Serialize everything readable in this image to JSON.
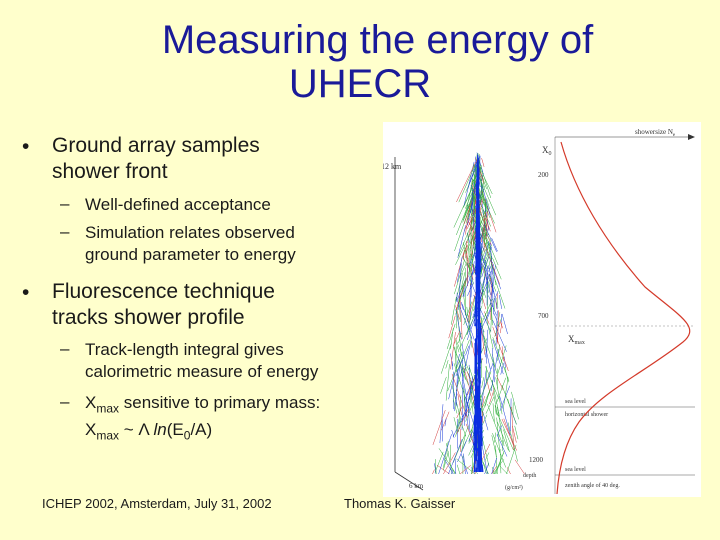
{
  "slide": {
    "title_line1": "Measuring the energy of",
    "title_line2": "UHECR",
    "bullet1": {
      "line1": "Ground array samples",
      "line2": "shower front"
    },
    "bullet1_subs": [
      {
        "line1": "Well-defined acceptance",
        "line2": ""
      },
      {
        "line1": "Simulation relates observed",
        "line2": "ground parameter to energy"
      }
    ],
    "bullet2": {
      "line1": "Fluorescence technique",
      "line2": "tracks shower profile"
    },
    "bullet2_subs": [
      {
        "line1": "Track-length integral gives",
        "line2": "calorimetric measure of energy"
      },
      {
        "xmax_a": "X",
        "xmax_sub": "max",
        "text_a": " sensitive to primary mass:",
        "xmax_b": "X",
        "xmax_sub_b": "max",
        "text_b": " ~ Λ ",
        "ln": "ln",
        "paren": "(E",
        "e_sub": "0",
        "tail": "/A)"
      }
    ],
    "bullet_symbol": "•",
    "sub_symbol": "–",
    "footer_left": "ICHEP 2002, Amsterdam, July 31, 2002",
    "footer_right": "Thomas K. Gaisser"
  },
  "figure": {
    "label_12km": "12 km",
    "label_6km": "6 km",
    "label_x0": "X",
    "label_x0_sub": "0",
    "label_xmax": "X",
    "label_xmax_sub": "max",
    "label_showersize": "showersize N",
    "label_showersize_sub": "e",
    "depth_200": "200",
    "depth_700": "700",
    "depth_1200": "1200",
    "depth_label": "depth",
    "depth_unit": "(g/cm²)",
    "sea_level_1": "sea level",
    "horizontal_shower": "horizontal shower",
    "sea_level_2": "sea level",
    "zenith_label": "zenith angle of 40 deg."
  }
}
